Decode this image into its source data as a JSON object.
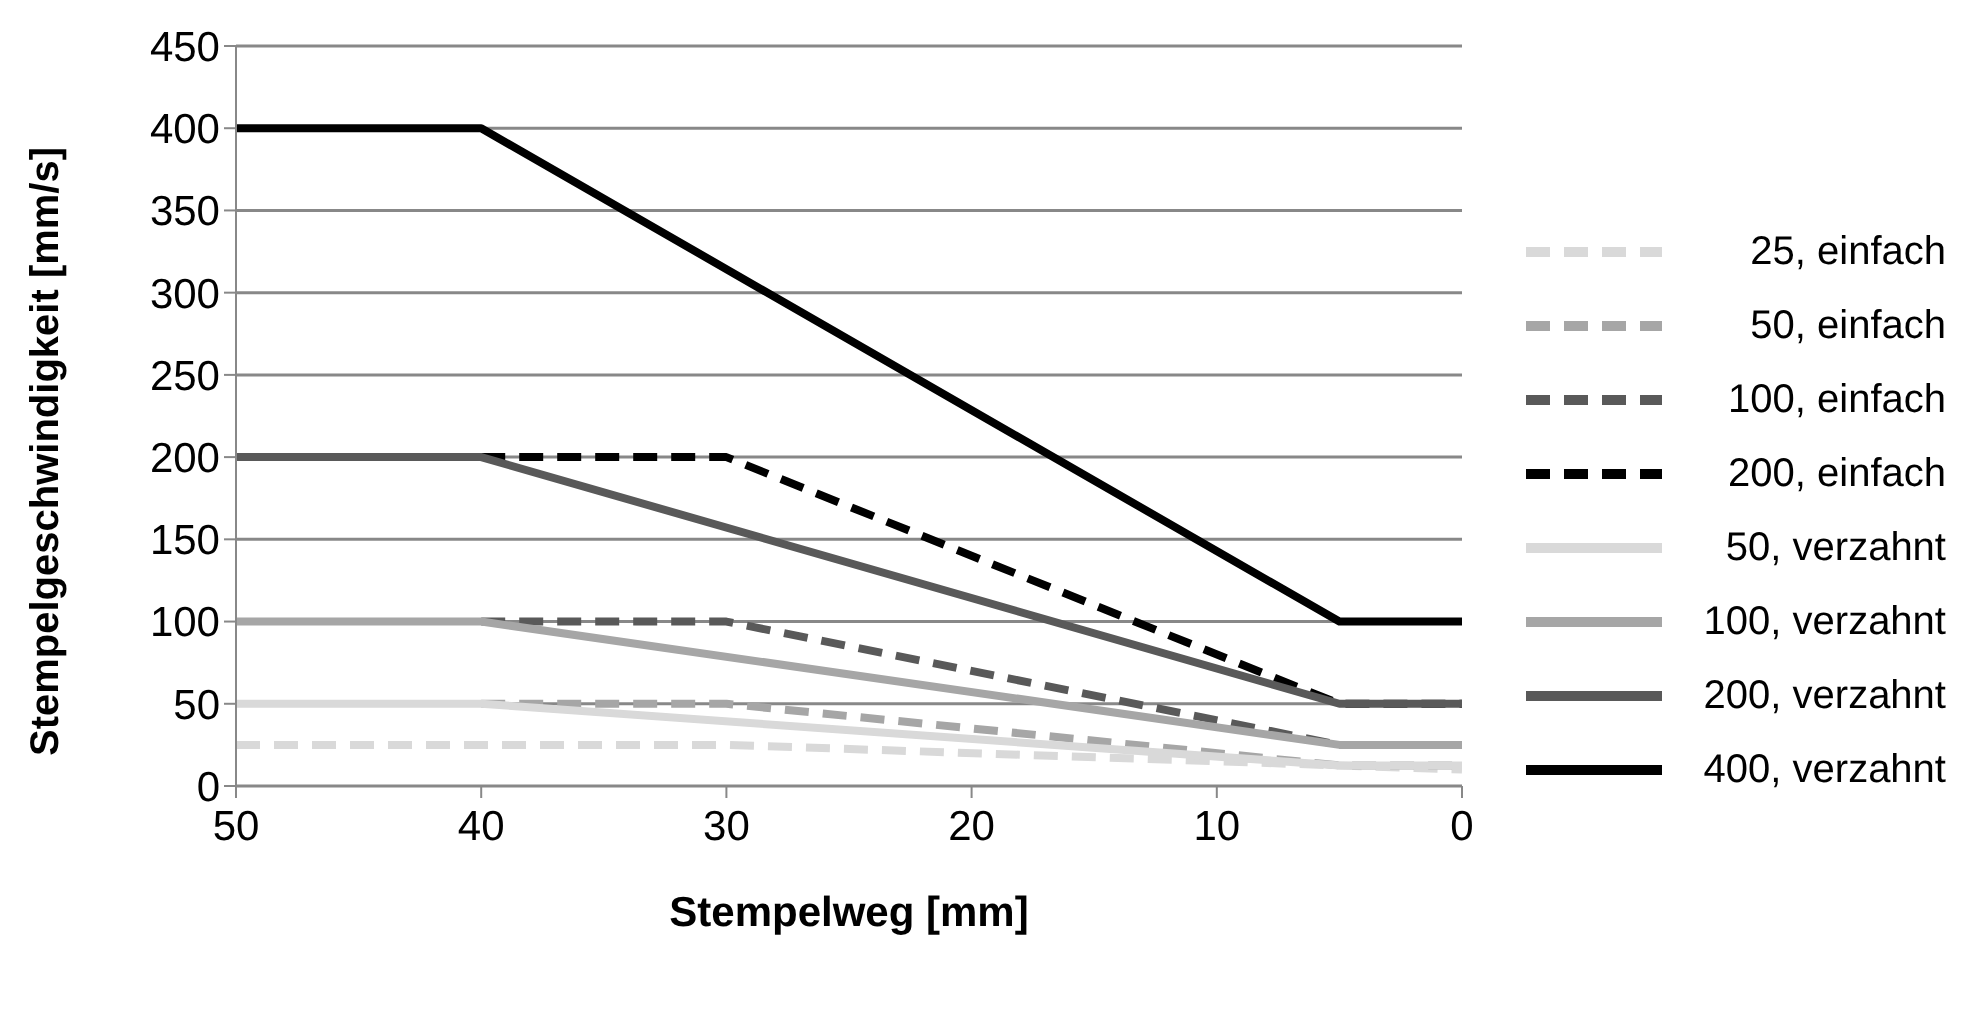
{
  "chart_data": {
    "type": "line",
    "xlabel": "Stempelweg [mm]",
    "ylabel": "Stempelgeschwindigkeit [mm/s]",
    "xlim": [
      50,
      0
    ],
    "xticks": [
      50,
      40,
      30,
      20,
      10,
      0
    ],
    "ylim": [
      0,
      450
    ],
    "yticks": [
      0,
      50,
      100,
      150,
      200,
      250,
      300,
      350,
      400,
      450
    ],
    "grid": "y",
    "legend": "right",
    "marker": "none",
    "series": [
      {
        "name": "25, einfach",
        "color": "#d9d9d9",
        "line_style": "dashed",
        "x": [
          50,
          30,
          5,
          0
        ],
        "values": [
          25,
          25,
          12.5,
          10
        ]
      },
      {
        "name": "50, einfach",
        "color": "#a6a6a6",
        "line_style": "dashed",
        "x": [
          40,
          30,
          5,
          0
        ],
        "values": [
          50,
          50,
          12.5,
          12.5
        ]
      },
      {
        "name": "100, einfach",
        "color": "#595959",
        "line_style": "dashed",
        "x": [
          40,
          30,
          5,
          0
        ],
        "values": [
          100,
          100,
          25,
          25
        ]
      },
      {
        "name": "200, einfach",
        "color": "#000000",
        "line_style": "dashed",
        "x": [
          40,
          30,
          5,
          0
        ],
        "values": [
          200,
          200,
          50,
          50
        ]
      },
      {
        "name": "50, verzahnt",
        "color": "#d9d9d9",
        "line_style": "solid",
        "x": [
          50,
          40,
          5,
          0
        ],
        "values": [
          50,
          50,
          12.5,
          12.5
        ]
      },
      {
        "name": "100, verzahnt",
        "color": "#a6a6a6",
        "line_style": "solid",
        "x": [
          50,
          40,
          5,
          0
        ],
        "values": [
          100,
          100,
          25,
          25
        ]
      },
      {
        "name": "200, verzahnt",
        "color": "#595959",
        "line_style": "solid",
        "x": [
          50,
          40,
          5,
          0
        ],
        "values": [
          200,
          200,
          50,
          50
        ]
      },
      {
        "name": "400, verzahnt",
        "color": "#000000",
        "line_style": "solid",
        "x": [
          50,
          40,
          5,
          0
        ],
        "values": [
          400,
          400,
          100,
          100
        ]
      }
    ]
  }
}
